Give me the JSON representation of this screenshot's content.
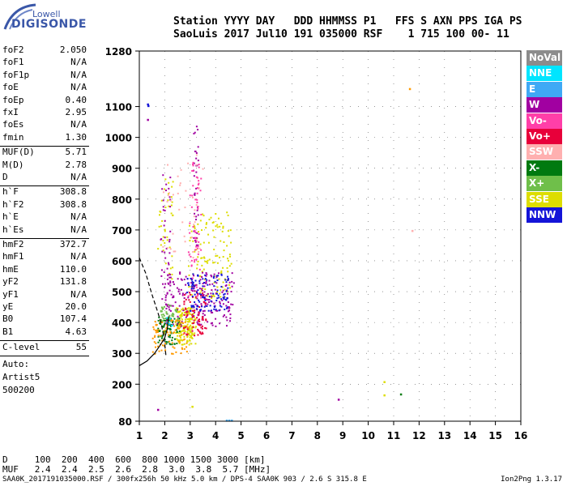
{
  "logo": {
    "line1": "Lowell",
    "line2": "DIGISONDE"
  },
  "header": {
    "labels_row": "Station YYYY DAY   DDD HHMMSS P1   FFS S AXN PPS IGA PS",
    "values_row": "SaoLuis 2017 Jul10 191 035000 RSF    1 715 100 00- 11"
  },
  "params_group1": [
    {
      "label": "foF2",
      "value": "2.050"
    },
    {
      "label": "foF1",
      "value": "N/A"
    },
    {
      "label": "foF1p",
      "value": "N/A"
    },
    {
      "label": "foE",
      "value": "N/A"
    },
    {
      "label": "foEp",
      "value": "0.40"
    },
    {
      "label": "fxI",
      "value": "2.95"
    },
    {
      "label": "foEs",
      "value": "N/A"
    },
    {
      "label": "fmin",
      "value": "1.30"
    }
  ],
  "params_group2": [
    {
      "label": "MUF(D)",
      "value": "5.71"
    },
    {
      "label": "M(D)",
      "value": "2.78"
    },
    {
      "label": "D",
      "value": "N/A"
    }
  ],
  "params_group3": [
    {
      "label": "h`F",
      "value": "308.8"
    },
    {
      "label": "h`F2",
      "value": "308.8"
    },
    {
      "label": "h`E",
      "value": "N/A"
    },
    {
      "label": "h`Es",
      "value": "N/A"
    }
  ],
  "params_group4": [
    {
      "label": "hmF2",
      "value": "372.7"
    },
    {
      "label": "hmF1",
      "value": "N/A"
    },
    {
      "label": "hmE",
      "value": "110.0"
    },
    {
      "label": "yF2",
      "value": "131.8"
    },
    {
      "label": "yF1",
      "value": "N/A"
    },
    {
      "label": "yE",
      "value": "20.0"
    },
    {
      "label": "B0",
      "value": "107.4"
    },
    {
      "label": "B1",
      "value": "4.63"
    }
  ],
  "clevel": {
    "label": "C-level",
    "value": "55"
  },
  "auto_lines": [
    "Auto:",
    "Artist5",
    "500200"
  ],
  "legend": [
    {
      "label": "NoVal",
      "bg": "#8c8c8c",
      "fg": "#ffffff"
    },
    {
      "label": "NNE",
      "bg": "#00e5ff",
      "fg": "#ffffff"
    },
    {
      "label": "E",
      "bg": "#3fa9f5",
      "fg": "#ffffff"
    },
    {
      "label": "W",
      "bg": "#a100a1",
      "fg": "#ffffff"
    },
    {
      "label": "Vo-",
      "bg": "#ff3fa8",
      "fg": "#ffffff"
    },
    {
      "label": "Vo+",
      "bg": "#e8003a",
      "fg": "#ffffff"
    },
    {
      "label": "SSW",
      "bg": "#ffb0b0",
      "fg": "#ffffff"
    },
    {
      "label": "X-",
      "bg": "#007a10",
      "fg": "#ffffff"
    },
    {
      "label": "X+",
      "bg": "#6fbf4a",
      "fg": "#ffffff"
    },
    {
      "label": "SSE",
      "bg": "#dddd00",
      "fg": "#ffffff"
    },
    {
      "label": "NNW",
      "bg": "#1414d8",
      "fg": "#ffffff"
    }
  ],
  "footer": {
    "d_row": "D     100  200  400  600  800 1000 1500 3000 [km]",
    "muf_row": "MUF   2.4  2.4  2.5  2.6  2.8  3.0  3.8  5.7 [MHz]",
    "file_line": "SAA0K_2017191035000.RSF / 300fx256h 50 kHz 5.0 km / DPS-4 SAA0K 903 / 2.6 S 315.8 E",
    "version": "Ion2Png 1.3.17"
  },
  "chart_data": {
    "type": "scatter",
    "title": "",
    "xlabel": "",
    "ylabel": "",
    "xlim": [
      1,
      16
    ],
    "ylim": [
      80,
      1280
    ],
    "x_ticks": [
      "1",
      "2",
      "3",
      "4",
      "5",
      "6",
      "7",
      "8",
      "9",
      "10",
      "11",
      "12",
      "13",
      "14",
      "15",
      "16"
    ],
    "y_ticks": [
      "80",
      "200",
      "300",
      "400",
      "500",
      "600",
      "700",
      "800",
      "900",
      "1000",
      "1100",
      "1280"
    ],
    "grid": "dotted",
    "clusters": [
      {
        "series": "SSE",
        "color": "#dddd00",
        "x": [
          2.4,
          3.2
        ],
        "y": [
          330,
          450
        ],
        "n": 160
      },
      {
        "series": "SSE",
        "color": "#dddd00",
        "x": [
          2.9,
          4.6
        ],
        "y": [
          480,
          760
        ],
        "n": 130
      },
      {
        "series": "SSE",
        "color": "#dddd00",
        "x": [
          1.7,
          2.3
        ],
        "y": [
          540,
          870
        ],
        "n": 40
      },
      {
        "series": "W",
        "color": "#a100a1",
        "x": [
          2.0,
          4.7
        ],
        "y": [
          390,
          570
        ],
        "n": 200
      },
      {
        "series": "W",
        "color": "#a100a1",
        "x": [
          1.8,
          2.2
        ],
        "y": [
          420,
          900
        ],
        "n": 45
      },
      {
        "series": "W",
        "color": "#a100a1",
        "x": [
          3.1,
          3.3
        ],
        "y": [
          650,
          1050
        ],
        "n": 35
      },
      {
        "series": "Vo+",
        "color": "#e8003a",
        "x": [
          2.7,
          3.6
        ],
        "y": [
          360,
          500
        ],
        "n": 80
      },
      {
        "series": "Vo-",
        "color": "#ff3fa8",
        "x": [
          2.9,
          3.4
        ],
        "y": [
          480,
          960
        ],
        "n": 60
      },
      {
        "series": "NNW",
        "color": "#1414d8",
        "x": [
          2.8,
          4.5
        ],
        "y": [
          440,
          560
        ],
        "n": 110
      },
      {
        "series": "X-",
        "color": "#007a10",
        "x": [
          1.7,
          2.6
        ],
        "y": [
          330,
          420
        ],
        "n": 80
      },
      {
        "series": "X+",
        "color": "#6fbf4a",
        "x": [
          1.8,
          2.5
        ],
        "y": [
          400,
          460
        ],
        "n": 40
      },
      {
        "series": "SSW",
        "color": "#ffb0b0",
        "x": [
          1.9,
          3.5
        ],
        "y": [
          600,
          960
        ],
        "n": 40
      },
      {
        "series": "SSE-orange",
        "color": "#ff9a00",
        "x": [
          1.5,
          2.9
        ],
        "y": [
          300,
          410
        ],
        "n": 90
      },
      {
        "series": "NNE",
        "color": "#00e5ff",
        "x": [
          2.0,
          2.3
        ],
        "y": [
          380,
          420
        ],
        "n": 8
      }
    ],
    "sparse_points": [
      {
        "x": 1.3,
        "y": 1110,
        "color": "#1414d8"
      },
      {
        "x": 1.32,
        "y": 1105,
        "color": "#1414d8"
      },
      {
        "x": 1.3,
        "y": 1060,
        "color": "#a100a1"
      },
      {
        "x": 8.8,
        "y": 153,
        "color": "#a100a1"
      },
      {
        "x": 10.6,
        "y": 167,
        "color": "#dddd00"
      },
      {
        "x": 10.6,
        "y": 210,
        "color": "#dddd00"
      },
      {
        "x": 11.25,
        "y": 170,
        "color": "#007a10"
      },
      {
        "x": 11.6,
        "y": 1160,
        "color": "#ff9a00"
      },
      {
        "x": 11.7,
        "y": 700,
        "color": "#ffb0b0"
      },
      {
        "x": 4.4,
        "y": 85,
        "color": "#3fa9f5"
      },
      {
        "x": 4.5,
        "y": 85,
        "color": "#3fa9f5"
      },
      {
        "x": 4.6,
        "y": 85,
        "color": "#3fa9f5"
      },
      {
        "x": 1.7,
        "y": 120,
        "color": "#a100a1"
      },
      {
        "x": 3.05,
        "y": 130,
        "color": "#dddd00"
      }
    ],
    "profile_dashed": [
      [
        1.0,
        610
      ],
      [
        1.25,
        560
      ],
      [
        1.5,
        490
      ],
      [
        1.7,
        440
      ],
      [
        1.85,
        400
      ],
      [
        1.95,
        360
      ],
      [
        2.0,
        330
      ],
      [
        2.05,
        290
      ]
    ],
    "profile_solid": [
      [
        1.0,
        260
      ],
      [
        1.3,
        275
      ],
      [
        1.6,
        300
      ],
      [
        1.85,
        330
      ],
      [
        2.0,
        350
      ],
      [
        2.1,
        380
      ],
      [
        2.15,
        420
      ]
    ]
  }
}
